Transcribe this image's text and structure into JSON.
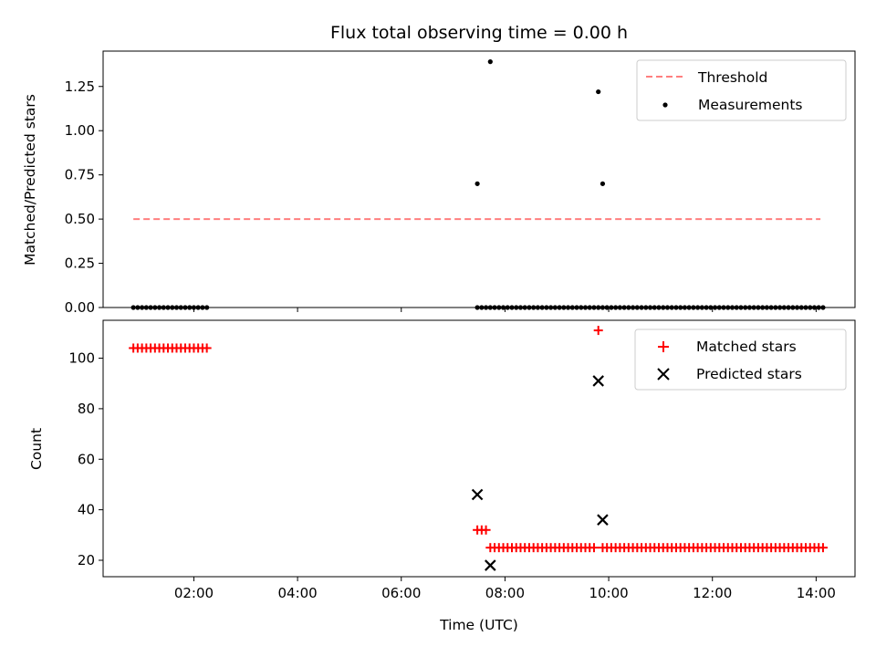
{
  "figure": {
    "title": "Flux total observing time = 0.00 h"
  },
  "chart_data": [
    {
      "type": "scatter",
      "title": "Flux total observing time = 0.00 h",
      "xlabel": "",
      "ylabel": "Matched/Predicted stars",
      "xlim": [
        "00:15",
        "14:45"
      ],
      "ylim": [
        0,
        1.45
      ],
      "yticks": [
        0.0,
        0.25,
        0.5,
        0.75,
        1.0,
        1.25
      ],
      "ytick_labels": [
        "0.00",
        "0.25",
        "0.50",
        "0.75",
        "1.00",
        "1.25"
      ],
      "legend": {
        "position": "upper right",
        "entries": [
          "Threshold",
          "Measurements"
        ]
      },
      "threshold": {
        "name": "Threshold",
        "value": 0.5,
        "x_start": "00:50",
        "x_end": "14:05",
        "color": "#ff7f7f",
        "style": "dashed"
      },
      "measurements": {
        "name": "Measurements",
        "color": "#000000",
        "x": [
          "00:50",
          "00:55",
          "01:00",
          "01:05",
          "01:10",
          "01:15",
          "01:20",
          "01:25",
          "01:30",
          "01:35",
          "01:40",
          "01:45",
          "01:50",
          "01:55",
          "02:00",
          "02:05",
          "02:10",
          "02:15",
          "07:28",
          "07:33",
          "07:38",
          "07:43",
          "07:48",
          "07:53",
          "07:58",
          "08:03",
          "08:08",
          "08:13",
          "08:18",
          "08:23",
          "08:28",
          "08:33",
          "08:38",
          "08:43",
          "08:48",
          "08:53",
          "08:58",
          "09:03",
          "09:08",
          "09:13",
          "09:18",
          "09:23",
          "09:28",
          "09:33",
          "09:38",
          "09:43",
          "09:48",
          "09:53",
          "09:58",
          "10:03",
          "10:08",
          "10:13",
          "10:18",
          "10:23",
          "10:28",
          "10:33",
          "10:38",
          "10:43",
          "10:48",
          "10:53",
          "10:58",
          "11:03",
          "11:08",
          "11:13",
          "11:18",
          "11:23",
          "11:28",
          "11:33",
          "11:38",
          "11:43",
          "11:48",
          "11:53",
          "11:58",
          "12:03",
          "12:08",
          "12:13",
          "12:18",
          "12:23",
          "12:28",
          "12:33",
          "12:38",
          "12:43",
          "12:48",
          "12:53",
          "12:58",
          "13:03",
          "13:08",
          "13:13",
          "13:18",
          "13:23",
          "13:28",
          "13:33",
          "13:38",
          "13:43",
          "13:48",
          "13:53",
          "13:58",
          "14:03",
          "14:08",
          "07:28",
          "07:43",
          "09:48",
          "09:53"
        ],
        "y": [
          0,
          0,
          0,
          0,
          0,
          0,
          0,
          0,
          0,
          0,
          0,
          0,
          0,
          0,
          0,
          0,
          0,
          0,
          0,
          0,
          0,
          0,
          0,
          0,
          0,
          0,
          0,
          0,
          0,
          0,
          0,
          0,
          0,
          0,
          0,
          0,
          0,
          0,
          0,
          0,
          0,
          0,
          0,
          0,
          0,
          0,
          0,
          0,
          0,
          0,
          0,
          0,
          0,
          0,
          0,
          0,
          0,
          0,
          0,
          0,
          0,
          0,
          0,
          0,
          0,
          0,
          0,
          0,
          0,
          0,
          0,
          0,
          0,
          0,
          0,
          0,
          0,
          0,
          0,
          0,
          0,
          0,
          0,
          0,
          0,
          0,
          0,
          0,
          0,
          0,
          0,
          0,
          0,
          0,
          0,
          0,
          0,
          0,
          0,
          0.7,
          1.39,
          1.22,
          0.7
        ]
      }
    },
    {
      "type": "scatter",
      "title": "",
      "xlabel": "Time (UTC)",
      "ylabel": "Count",
      "xlim": [
        "00:15",
        "14:45"
      ],
      "ylim": [
        13.5,
        115
      ],
      "xtick_labels": [
        "02:00",
        "04:00",
        "06:00",
        "08:00",
        "10:00",
        "12:00",
        "14:00"
      ],
      "yticks": [
        20,
        40,
        60,
        80,
        100
      ],
      "ytick_labels": [
        "20",
        "40",
        "60",
        "80",
        "100"
      ],
      "legend": {
        "position": "upper right",
        "entries": [
          "Matched stars",
          "Predicted stars"
        ]
      },
      "series": [
        {
          "name": "Matched stars",
          "marker": "+",
          "color": "#ff0000",
          "x": [
            "00:50",
            "00:55",
            "01:00",
            "01:05",
            "01:10",
            "01:15",
            "01:20",
            "01:25",
            "01:30",
            "01:35",
            "01:40",
            "01:45",
            "01:50",
            "01:55",
            "02:00",
            "02:05",
            "02:10",
            "02:15",
            "07:28",
            "07:33",
            "07:38",
            "07:43",
            "07:48",
            "07:53",
            "07:58",
            "08:03",
            "08:08",
            "08:13",
            "08:18",
            "08:23",
            "08:28",
            "08:33",
            "08:38",
            "08:43",
            "08:48",
            "08:53",
            "08:58",
            "09:03",
            "09:08",
            "09:13",
            "09:18",
            "09:23",
            "09:28",
            "09:33",
            "09:38",
            "09:43",
            "09:48",
            "09:53",
            "09:58",
            "10:03",
            "10:08",
            "10:13",
            "10:18",
            "10:23",
            "10:28",
            "10:33",
            "10:38",
            "10:43",
            "10:48",
            "10:53",
            "10:58",
            "11:03",
            "11:08",
            "11:13",
            "11:18",
            "11:23",
            "11:28",
            "11:33",
            "11:38",
            "11:43",
            "11:48",
            "11:53",
            "11:58",
            "12:03",
            "12:08",
            "12:13",
            "12:18",
            "12:23",
            "12:28",
            "12:33",
            "12:38",
            "12:43",
            "12:48",
            "12:53",
            "12:58",
            "13:03",
            "13:08",
            "13:13",
            "13:18",
            "13:23",
            "13:28",
            "13:33",
            "13:38",
            "13:43",
            "13:48",
            "13:53",
            "13:58",
            "14:03",
            "14:08"
          ],
          "y": [
            104,
            104,
            104,
            104,
            104,
            104,
            104,
            104,
            104,
            104,
            104,
            104,
            104,
            104,
            104,
            104,
            104,
            104,
            32,
            32,
            32,
            25,
            25,
            25,
            25,
            25,
            25,
            25,
            25,
            25,
            25,
            25,
            25,
            25,
            25,
            25,
            25,
            25,
            25,
            25,
            25,
            25,
            25,
            25,
            25,
            25,
            111,
            25,
            25,
            25,
            25,
            25,
            25,
            25,
            25,
            25,
            25,
            25,
            25,
            25,
            25,
            25,
            25,
            25,
            25,
            25,
            25,
            25,
            25,
            25,
            25,
            25,
            25,
            25,
            25,
            25,
            25,
            25,
            25,
            25,
            25,
            25,
            25,
            25,
            25,
            25,
            25,
            25,
            25,
            25,
            25,
            25,
            25,
            25,
            25,
            25,
            25,
            25,
            25
          ]
        },
        {
          "name": "Predicted stars",
          "marker": "x",
          "color": "#000000",
          "x": [
            "07:28",
            "07:43",
            "09:48",
            "09:53"
          ],
          "y": [
            46,
            18,
            91,
            36
          ]
        }
      ]
    }
  ]
}
